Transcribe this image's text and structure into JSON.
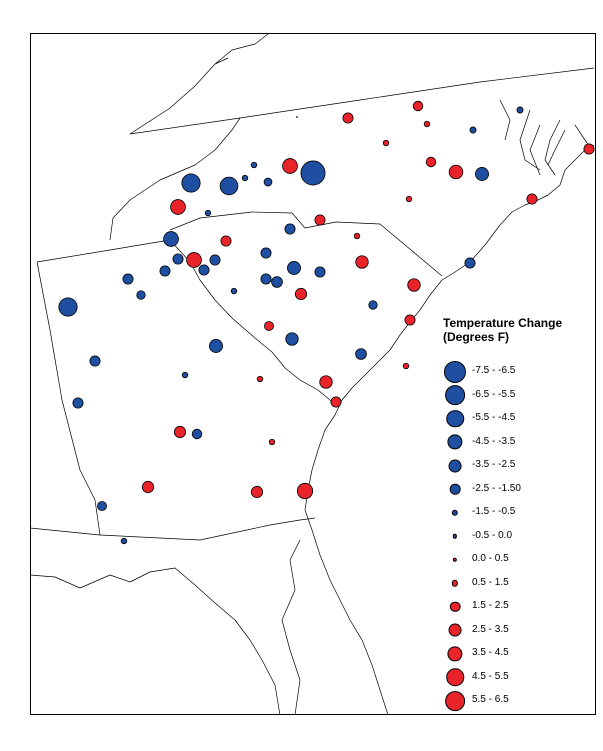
{
  "legend": {
    "title_line1": "Temperature Change",
    "title_line2": "(Degrees F)",
    "items": [
      {
        "label": "-7.5 - -6.5",
        "color": "#1f4fa0",
        "value": -7.0
      },
      {
        "label": "-6.5 - -5.5",
        "color": "#1f4fa0",
        "value": -6.0
      },
      {
        "label": "-5.5 - -4.5",
        "color": "#1f4fa0",
        "value": -5.0
      },
      {
        "label": "-4.5 - -3.5",
        "color": "#1f4fa0",
        "value": -4.0
      },
      {
        "label": "-3.5 - -2.5",
        "color": "#1f4fa0",
        "value": -3.0
      },
      {
        "label": "-2.5 - -1.50",
        "color": "#1f4fa0",
        "value": -2.0
      },
      {
        "label": "-1.5 - -0.5",
        "color": "#1f4fa0",
        "value": -1.0
      },
      {
        "label": "-0.5 - 0.0",
        "color": "#1f4fa0",
        "value": -0.25
      },
      {
        "label": "0.0 - 0.5",
        "color": "#e8232a",
        "value": 0.25
      },
      {
        "label": "0.5 - 1.5",
        "color": "#e8232a",
        "value": 1.0
      },
      {
        "label": "1.5 - 2.5",
        "color": "#e8232a",
        "value": 2.0
      },
      {
        "label": "2.5 - 3.5",
        "color": "#e8232a",
        "value": 3.0
      },
      {
        "label": "3.5 - 4.5",
        "color": "#e8232a",
        "value": 4.0
      },
      {
        "label": "4.5 - 5.5",
        "color": "#e8232a",
        "value": 5.0
      },
      {
        "label": "5.5 - 6.5",
        "color": "#e8232a",
        "value": 6.0
      }
    ]
  },
  "colors": {
    "cooling": "#1f4fa0",
    "warming": "#e8232a",
    "outline": "#000000",
    "boundary": "#000000"
  }
}
